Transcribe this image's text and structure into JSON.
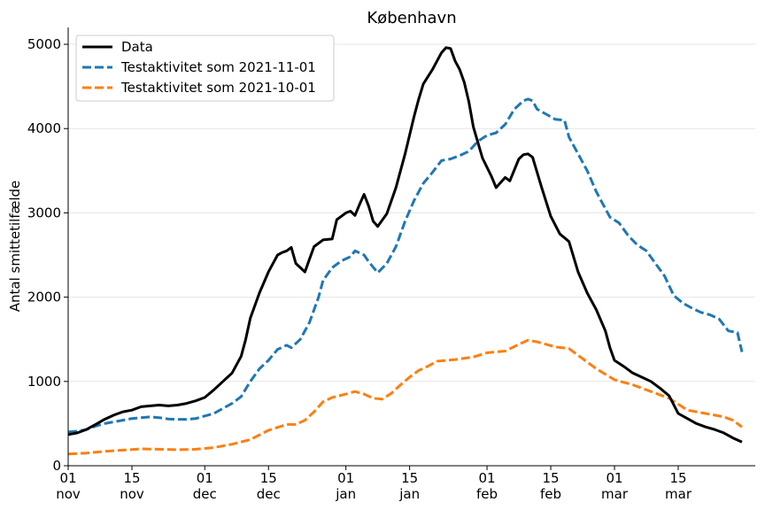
{
  "chart_data": {
    "type": "line",
    "title": "København",
    "xlabel": "",
    "ylabel": "Antal smittetilfælde",
    "ylim": [
      0,
      5200
    ],
    "y_ticks": [
      0,
      1000,
      2000,
      3000,
      4000,
      5000
    ],
    "x_range": [
      "2021-11-01",
      "2022-03-29"
    ],
    "x_ticks": [
      {
        "date": "2021-11-01",
        "day": "01",
        "month": "nov"
      },
      {
        "date": "2021-11-15",
        "day": "15",
        "month": "nov"
      },
      {
        "date": "2021-12-01",
        "day": "01",
        "month": "dec"
      },
      {
        "date": "2021-12-15",
        "day": "15",
        "month": "dec"
      },
      {
        "date": "2022-01-01",
        "day": "01",
        "month": "jan"
      },
      {
        "date": "2022-01-15",
        "day": "15",
        "month": "jan"
      },
      {
        "date": "2022-02-01",
        "day": "01",
        "month": "feb"
      },
      {
        "date": "2022-02-15",
        "day": "15",
        "month": "feb"
      },
      {
        "date": "2022-03-01",
        "day": "01",
        "month": "mar"
      },
      {
        "date": "2022-03-15",
        "day": "15",
        "month": "mar"
      }
    ],
    "grid": "horizontal",
    "legend_position": "top-left",
    "series": [
      {
        "name": "Data",
        "color": "#000000",
        "style": "solid",
        "points": [
          [
            "2021-11-01",
            370
          ],
          [
            "2021-11-03",
            390
          ],
          [
            "2021-11-05",
            430
          ],
          [
            "2021-11-07",
            490
          ],
          [
            "2021-11-09",
            550
          ],
          [
            "2021-11-11",
            600
          ],
          [
            "2021-11-13",
            640
          ],
          [
            "2021-11-15",
            660
          ],
          [
            "2021-11-17",
            700
          ],
          [
            "2021-11-19",
            710
          ],
          [
            "2021-11-21",
            720
          ],
          [
            "2021-11-23",
            710
          ],
          [
            "2021-11-25",
            720
          ],
          [
            "2021-11-27",
            740
          ],
          [
            "2021-11-29",
            770
          ],
          [
            "2021-12-01",
            810
          ],
          [
            "2021-12-03",
            900
          ],
          [
            "2021-12-05",
            1000
          ],
          [
            "2021-12-07",
            1100
          ],
          [
            "2021-12-09",
            1300
          ],
          [
            "2021-12-10",
            1500
          ],
          [
            "2021-12-11",
            1750
          ],
          [
            "2021-12-13",
            2050
          ],
          [
            "2021-12-15",
            2300
          ],
          [
            "2021-12-17",
            2500
          ],
          [
            "2021-12-18",
            2530
          ],
          [
            "2021-12-19",
            2550
          ],
          [
            "2021-12-20",
            2590
          ],
          [
            "2021-12-21",
            2400
          ],
          [
            "2021-12-23",
            2300
          ],
          [
            "2021-12-24",
            2450
          ],
          [
            "2021-12-25",
            2600
          ],
          [
            "2021-12-27",
            2680
          ],
          [
            "2021-12-29",
            2690
          ],
          [
            "2021-12-30",
            2920
          ],
          [
            "2022-01-01",
            3000
          ],
          [
            "2022-01-02",
            3020
          ],
          [
            "2022-01-03",
            2970
          ],
          [
            "2022-01-04",
            3100
          ],
          [
            "2022-01-05",
            3220
          ],
          [
            "2022-01-06",
            3080
          ],
          [
            "2022-01-07",
            2900
          ],
          [
            "2022-01-08",
            2840
          ],
          [
            "2022-01-10",
            2990
          ],
          [
            "2022-01-12",
            3300
          ],
          [
            "2022-01-14",
            3700
          ],
          [
            "2022-01-16",
            4150
          ],
          [
            "2022-01-17",
            4350
          ],
          [
            "2022-01-18",
            4530
          ],
          [
            "2022-01-20",
            4700
          ],
          [
            "2022-01-22",
            4900
          ],
          [
            "2022-01-23",
            4960
          ],
          [
            "2022-01-24",
            4950
          ],
          [
            "2022-01-25",
            4800
          ],
          [
            "2022-01-26",
            4700
          ],
          [
            "2022-01-27",
            4550
          ],
          [
            "2022-01-28",
            4320
          ],
          [
            "2022-01-29",
            4020
          ],
          [
            "2022-01-31",
            3650
          ],
          [
            "2022-02-02",
            3430
          ],
          [
            "2022-02-03",
            3300
          ],
          [
            "2022-02-05",
            3420
          ],
          [
            "2022-02-06",
            3380
          ],
          [
            "2022-02-08",
            3640
          ],
          [
            "2022-02-09",
            3690
          ],
          [
            "2022-02-10",
            3700
          ],
          [
            "2022-02-11",
            3660
          ],
          [
            "2022-02-13",
            3300
          ],
          [
            "2022-02-15",
            2960
          ],
          [
            "2022-02-17",
            2750
          ],
          [
            "2022-02-19",
            2660
          ],
          [
            "2022-02-21",
            2300
          ],
          [
            "2022-02-23",
            2050
          ],
          [
            "2022-02-25",
            1850
          ],
          [
            "2022-02-27",
            1600
          ],
          [
            "2022-02-28",
            1400
          ],
          [
            "2022-03-01",
            1250
          ],
          [
            "2022-03-03",
            1180
          ],
          [
            "2022-03-05",
            1100
          ],
          [
            "2022-03-07",
            1050
          ],
          [
            "2022-03-09",
            1000
          ],
          [
            "2022-03-11",
            920
          ],
          [
            "2022-03-13",
            830
          ],
          [
            "2022-03-15",
            620
          ],
          [
            "2022-03-17",
            560
          ],
          [
            "2022-03-19",
            500
          ],
          [
            "2022-03-21",
            460
          ],
          [
            "2022-03-23",
            430
          ],
          [
            "2022-03-25",
            390
          ],
          [
            "2022-03-27",
            330
          ],
          [
            "2022-03-29",
            280
          ]
        ]
      },
      {
        "name": "Testaktivitet som 2021-11-01",
        "color": "#1f77b4",
        "style": "dashed",
        "points": [
          [
            "2021-11-01",
            400
          ],
          [
            "2021-11-03",
            410
          ],
          [
            "2021-11-05",
            430
          ],
          [
            "2021-11-07",
            470
          ],
          [
            "2021-11-09",
            500
          ],
          [
            "2021-11-11",
            520
          ],
          [
            "2021-11-13",
            540
          ],
          [
            "2021-11-15",
            560
          ],
          [
            "2021-11-17",
            570
          ],
          [
            "2021-11-19",
            580
          ],
          [
            "2021-11-21",
            570
          ],
          [
            "2021-11-23",
            555
          ],
          [
            "2021-11-25",
            550
          ],
          [
            "2021-11-27",
            550
          ],
          [
            "2021-11-29",
            560
          ],
          [
            "2021-12-01",
            590
          ],
          [
            "2021-12-03",
            620
          ],
          [
            "2021-12-05",
            680
          ],
          [
            "2021-12-07",
            740
          ],
          [
            "2021-12-09",
            820
          ],
          [
            "2021-12-11",
            1000
          ],
          [
            "2021-12-13",
            1150
          ],
          [
            "2021-12-15",
            1250
          ],
          [
            "2021-12-17",
            1380
          ],
          [
            "2021-12-19",
            1430
          ],
          [
            "2021-12-20",
            1400
          ],
          [
            "2021-12-22",
            1500
          ],
          [
            "2021-12-24",
            1700
          ],
          [
            "2021-12-26",
            2000
          ],
          [
            "2021-12-27",
            2200
          ],
          [
            "2021-12-29",
            2350
          ],
          [
            "2021-12-31",
            2430
          ],
          [
            "2022-01-02",
            2480
          ],
          [
            "2022-01-03",
            2550
          ],
          [
            "2022-01-05",
            2500
          ],
          [
            "2022-01-06",
            2420
          ],
          [
            "2022-01-08",
            2290
          ],
          [
            "2022-01-10",
            2400
          ],
          [
            "2022-01-12",
            2600
          ],
          [
            "2022-01-14",
            2900
          ],
          [
            "2022-01-16",
            3150
          ],
          [
            "2022-01-18",
            3350
          ],
          [
            "2022-01-20",
            3480
          ],
          [
            "2022-01-22",
            3620
          ],
          [
            "2022-01-24",
            3640
          ],
          [
            "2022-01-26",
            3680
          ],
          [
            "2022-01-28",
            3730
          ],
          [
            "2022-01-30",
            3850
          ],
          [
            "2022-02-01",
            3920
          ],
          [
            "2022-02-03",
            3950
          ],
          [
            "2022-02-05",
            4050
          ],
          [
            "2022-02-07",
            4230
          ],
          [
            "2022-02-09",
            4330
          ],
          [
            "2022-02-10",
            4350
          ],
          [
            "2022-02-11",
            4330
          ],
          [
            "2022-02-12",
            4230
          ],
          [
            "2022-02-14",
            4170
          ],
          [
            "2022-02-16",
            4110
          ],
          [
            "2022-02-18",
            4100
          ],
          [
            "2022-02-19",
            3900
          ],
          [
            "2022-02-21",
            3700
          ],
          [
            "2022-02-23",
            3500
          ],
          [
            "2022-02-25",
            3250
          ],
          [
            "2022-02-27",
            3050
          ],
          [
            "2022-02-28",
            2950
          ],
          [
            "2022-03-02",
            2880
          ],
          [
            "2022-03-04",
            2730
          ],
          [
            "2022-03-06",
            2620
          ],
          [
            "2022-03-08",
            2550
          ],
          [
            "2022-03-10",
            2400
          ],
          [
            "2022-03-12",
            2250
          ],
          [
            "2022-03-14",
            2020
          ],
          [
            "2022-03-16",
            1930
          ],
          [
            "2022-03-18",
            1870
          ],
          [
            "2022-03-20",
            1820
          ],
          [
            "2022-03-22",
            1790
          ],
          [
            "2022-03-24",
            1740
          ],
          [
            "2022-03-26",
            1600
          ],
          [
            "2022-03-28",
            1580
          ],
          [
            "2022-03-29",
            1350
          ]
        ]
      },
      {
        "name": "Testaktivitet som 2021-10-01",
        "color": "#ff7f0e",
        "style": "dashed",
        "points": [
          [
            "2021-11-01",
            140
          ],
          [
            "2021-11-05",
            150
          ],
          [
            "2021-11-09",
            170
          ],
          [
            "2021-11-13",
            185
          ],
          [
            "2021-11-17",
            200
          ],
          [
            "2021-11-21",
            195
          ],
          [
            "2021-11-25",
            190
          ],
          [
            "2021-11-29",
            195
          ],
          [
            "2021-12-03",
            215
          ],
          [
            "2021-12-07",
            255
          ],
          [
            "2021-12-11",
            310
          ],
          [
            "2021-12-15",
            420
          ],
          [
            "2021-12-19",
            490
          ],
          [
            "2021-12-21",
            490
          ],
          [
            "2021-12-23",
            540
          ],
          [
            "2021-12-25",
            640
          ],
          [
            "2021-12-27",
            760
          ],
          [
            "2021-12-29",
            810
          ],
          [
            "2022-01-01",
            850
          ],
          [
            "2022-01-03",
            880
          ],
          [
            "2022-01-05",
            850
          ],
          [
            "2022-01-07",
            800
          ],
          [
            "2022-01-09",
            790
          ],
          [
            "2022-01-11",
            860
          ],
          [
            "2022-01-13",
            960
          ],
          [
            "2022-01-15",
            1050
          ],
          [
            "2022-01-17",
            1130
          ],
          [
            "2022-01-19",
            1180
          ],
          [
            "2022-01-21",
            1240
          ],
          [
            "2022-01-25",
            1260
          ],
          [
            "2022-01-29",
            1290
          ],
          [
            "2022-02-01",
            1340
          ],
          [
            "2022-02-05",
            1360
          ],
          [
            "2022-02-08",
            1440
          ],
          [
            "2022-02-10",
            1490
          ],
          [
            "2022-02-12",
            1470
          ],
          [
            "2022-02-16",
            1410
          ],
          [
            "2022-02-19",
            1390
          ],
          [
            "2022-02-21",
            1310
          ],
          [
            "2022-02-25",
            1150
          ],
          [
            "2022-03-01",
            1020
          ],
          [
            "2022-03-05",
            960
          ],
          [
            "2022-03-09",
            880
          ],
          [
            "2022-03-13",
            800
          ],
          [
            "2022-03-17",
            660
          ],
          [
            "2022-03-21",
            620
          ],
          [
            "2022-03-25",
            580
          ],
          [
            "2022-03-27",
            540
          ],
          [
            "2022-03-29",
            460
          ]
        ]
      }
    ]
  }
}
